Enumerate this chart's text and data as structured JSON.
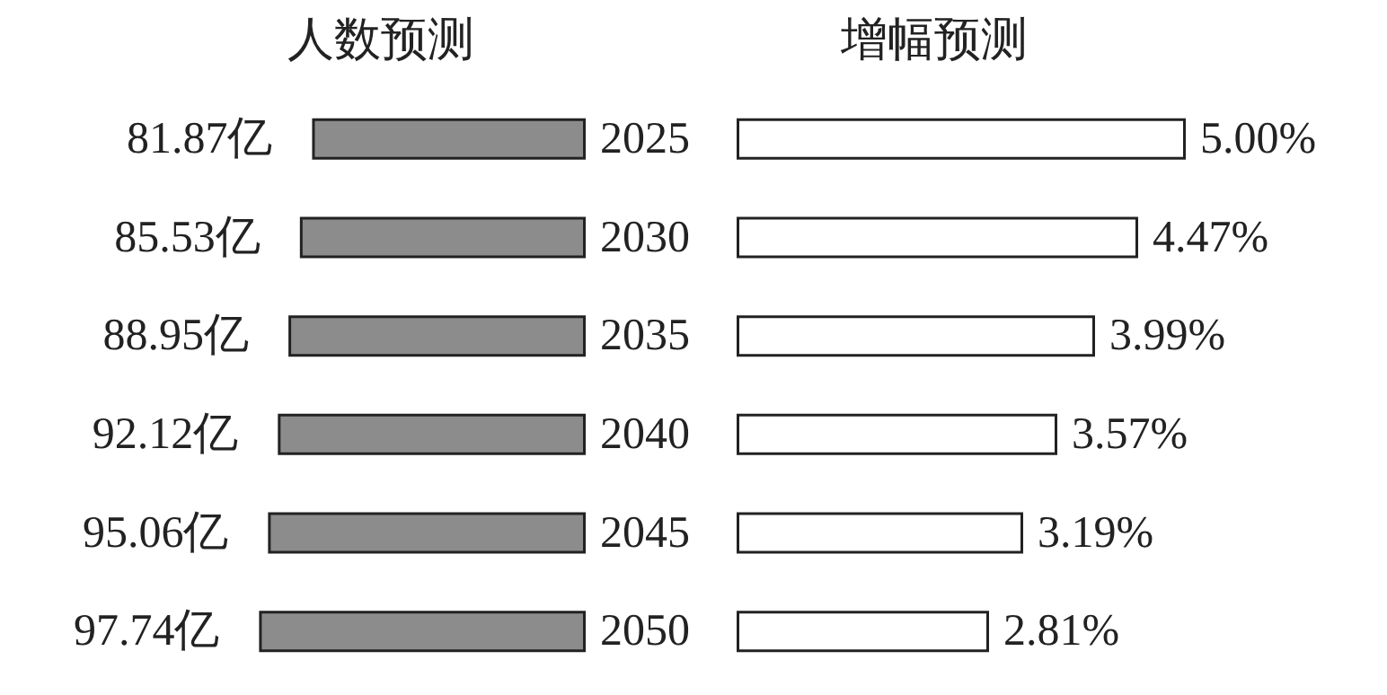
{
  "chart_data": [
    {
      "type": "bar",
      "orientation": "horizontal",
      "title": "人数预测",
      "categories": [
        "2025",
        "2030",
        "2035",
        "2040",
        "2045",
        "2050"
      ],
      "series": [
        {
          "color": "#8c8c8c",
          "values": [
            81.87,
            85.53,
            88.95,
            92.12,
            95.06,
            97.74
          ],
          "value_labels": [
            "81.87亿",
            "85.53亿",
            "88.95亿",
            "92.12亿",
            "95.06亿",
            "97.74亿"
          ]
        }
      ],
      "tick_labels": "y"
    },
    {
      "type": "bar",
      "orientation": "horizontal",
      "title": "增幅预测",
      "categories": [
        "2025",
        "2030",
        "2035",
        "2040",
        "2045",
        "2050"
      ],
      "series": [
        {
          "color": "#ffffff",
          "values": [
            5.0,
            4.47,
            3.99,
            3.57,
            3.19,
            2.81
          ],
          "value_labels": [
            "5.00%",
            "4.47%",
            "3.99%",
            "3.57%",
            "3.19%",
            "2.81%"
          ]
        }
      ],
      "tick_labels": false
    }
  ]
}
